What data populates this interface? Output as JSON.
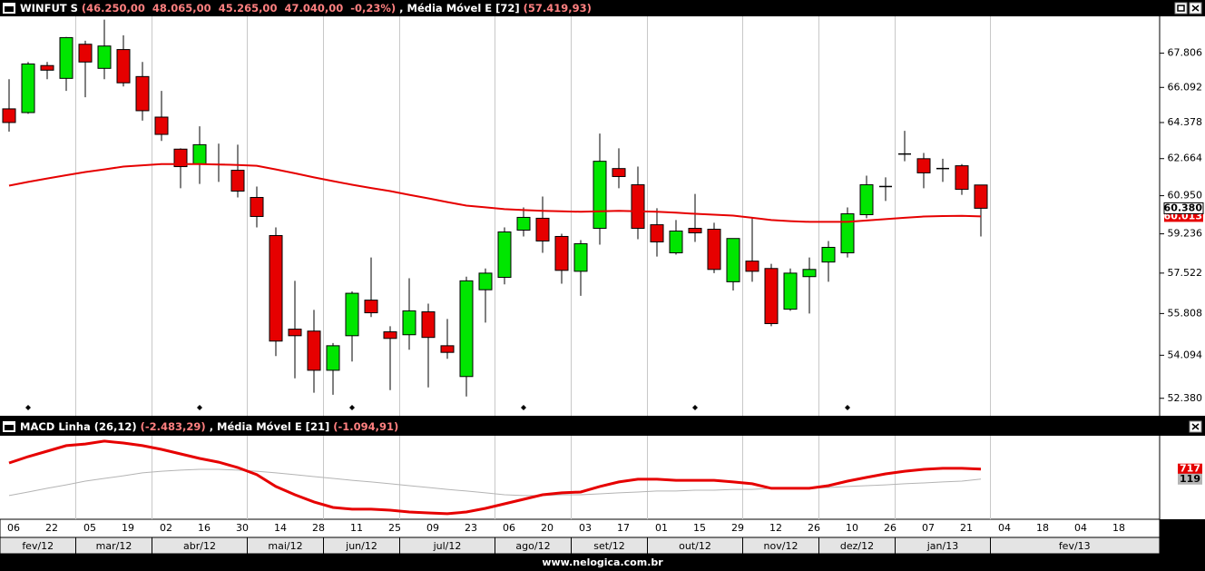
{
  "chart_data": [
    {
      "type": "candlestick",
      "header": [
        {
          "text": "WINFUT S",
          "color": "#ffffff"
        },
        {
          "text": "(46.250,00  48.065,00  45.265,00  47.040,00  -0,23%)",
          "color": "#ff8080"
        },
        {
          "text": ", Média Móvel E [72]",
          "color": "#ffffff"
        },
        {
          "text": "(57.419,93)",
          "color": "#ff8080"
        }
      ],
      "log_scale": true,
      "ylim": [
        51700,
        69700
      ],
      "yticks": [
        {
          "value": 52380,
          "label": "52.380"
        },
        {
          "value": 54094,
          "label": "54.094"
        },
        {
          "value": 55808,
          "label": "55.808"
        },
        {
          "value": 57522,
          "label": "57.522"
        },
        {
          "value": 59236,
          "label": "59.236"
        },
        {
          "value": 60950,
          "label": "60.950"
        },
        {
          "value": 62664,
          "label": "62.664"
        },
        {
          "value": 64378,
          "label": "64.378"
        },
        {
          "value": 66092,
          "label": "66.092"
        },
        {
          "value": 67806,
          "label": "67.806"
        }
      ],
      "categories": [
        "06",
        null,
        "22",
        null,
        "05",
        null,
        "19",
        null,
        "02",
        null,
        "16",
        null,
        "30",
        null,
        "14",
        null,
        "28",
        null,
        "11",
        null,
        "25",
        null,
        "09",
        null,
        "23",
        null,
        "06",
        null,
        "20",
        null,
        "03",
        null,
        "17",
        null,
        "01",
        null,
        "15",
        null,
        "29",
        null,
        "12",
        null,
        "26",
        null,
        "10",
        null,
        "26",
        null,
        "07",
        null,
        "21",
        null,
        "04",
        null,
        "18",
        null,
        "04",
        null,
        "18"
      ],
      "months": [
        "fev/12",
        "mar/12",
        "abr/12",
        "mai/12",
        "jun/12",
        "jul/12",
        "ago/12",
        "set/12",
        "out/12",
        "nov/12",
        "dez/12",
        "jan/13",
        "fev/13"
      ],
      "up_color": "#00e600",
      "down_color": "#e60000",
      "open": [
        65040,
        64860,
        67180,
        66540,
        68260,
        67040,
        67990,
        66630,
        64640,
        63110,
        62410,
        62390,
        62120,
        60870,
        59160,
        55160,
        55080,
        53490,
        54890,
        56370,
        55050,
        54930,
        55880,
        54480,
        53240,
        56810,
        57340,
        59400,
        59930,
        59120,
        57600,
        59480,
        62200,
        61450,
        59640,
        58400,
        59480,
        59440,
        57150,
        58040,
        57720,
        55990,
        57370,
        58000,
        58400,
        60090,
        61370,
        62880,
        62660,
        62200,
        62330,
        61440,
        null,
        null,
        null,
        null,
        null,
        null,
        null
      ],
      "high": [
        66500,
        67360,
        67360,
        68630,
        68440,
        69530,
        68720,
        67360,
        65920,
        63150,
        64200,
        63370,
        63320,
        61370,
        59520,
        57190,
        55960,
        54590,
        56740,
        58200,
        55280,
        57300,
        56220,
        55580,
        57370,
        57720,
        59520,
        60420,
        60910,
        59240,
        58960,
        63850,
        63150,
        62290,
        60380,
        59850,
        61030,
        59730,
        59040,
        59930,
        57920,
        57720,
        58200,
        58920,
        60420,
        61870,
        61790,
        63980,
        62930,
        62660,
        62410,
        61450,
        null,
        null,
        null,
        null,
        null,
        null,
        null
      ],
      "low": [
        63940,
        64800,
        66500,
        65920,
        65610,
        66500,
        66140,
        64470,
        63500,
        61290,
        61490,
        61580,
        60870,
        59520,
        54060,
        53170,
        52600,
        52520,
        53840,
        55660,
        52700,
        54320,
        52810,
        53950,
        52450,
        55430,
        57040,
        59120,
        58400,
        57070,
        56550,
        58760,
        61290,
        59000,
        58240,
        58320,
        58880,
        57520,
        56780,
        57150,
        55280,
        55920,
        55810,
        57150,
        58200,
        59930,
        60710,
        62540,
        61290,
        61580,
        60990,
        59120,
        null,
        null,
        null,
        null,
        null,
        null,
        null
      ],
      "close": [
        64380,
        67260,
        66950,
        68600,
        67360,
        68170,
        66320,
        64950,
        63810,
        62290,
        63320,
        62390,
        61160,
        60010,
        54670,
        54890,
        53490,
        54480,
        56660,
        55840,
        54780,
        55920,
        54820,
        54210,
        57190,
        57520,
        59320,
        59970,
        58920,
        57640,
        58800,
        62540,
        61830,
        59480,
        58880,
        59360,
        59280,
        57680,
        59030,
        57600,
        55390,
        57520,
        57680,
        58640,
        60130,
        61450,
        61370,
        62880,
        62000,
        62200,
        61240,
        60380,
        null,
        null,
        null,
        null,
        null,
        null,
        null
      ],
      "last_value_label": "60.380",
      "overlay": {
        "color": "#e60000",
        "values": [
          61410,
          61580,
          61740,
          61890,
          62040,
          62160,
          62290,
          62350,
          62410,
          62410,
          62410,
          62390,
          62370,
          62330,
          62160,
          61980,
          61790,
          61620,
          61450,
          61300,
          61160,
          60990,
          60830,
          60660,
          60500,
          60420,
          60340,
          60300,
          60260,
          60240,
          60220,
          60240,
          60260,
          60240,
          60220,
          60180,
          60130,
          60090,
          60050,
          59950,
          59850,
          59800,
          59770,
          59770,
          59770,
          59830,
          59890,
          59950,
          60010,
          60030,
          60040,
          60013,
          null,
          null,
          null,
          null,
          null,
          null,
          null
        ],
        "last_value_label": "60.013"
      }
    },
    {
      "type": "line",
      "header": [
        {
          "text": "MACD Linha (26,12)",
          "color": "#ffffff"
        },
        {
          "text": "(-2.483,29)",
          "color": "#ff8080"
        },
        {
          "text": ", Média Móvel E [21]",
          "color": "#ffffff"
        },
        {
          "text": "(-1.094,91)",
          "color": "#ff8080"
        }
      ],
      "ylim": [
        -2270,
        2700
      ],
      "series": [
        {
          "color": "#e60000",
          "line_width": 3,
          "label_text_color": "#ffffff",
          "values": [
            1080,
            1460,
            1780,
            2110,
            2210,
            2380,
            2270,
            2110,
            1890,
            1620,
            1350,
            1130,
            810,
            380,
            -320,
            -810,
            -1240,
            -1570,
            -1670,
            -1670,
            -1730,
            -1840,
            -1890,
            -1940,
            -1840,
            -1620,
            -1350,
            -1080,
            -810,
            -700,
            -650,
            -320,
            -50,
            110,
            110,
            50,
            50,
            50,
            -50,
            -160,
            -430,
            -430,
            -430,
            -270,
            0,
            220,
            430,
            590,
            700,
            760,
            760,
            717,
            null,
            null,
            null,
            null,
            null,
            null,
            null
          ]
        },
        {
          "color": "#b4b4b4",
          "line_width": 1,
          "label_text_color": "#000000",
          "values": [
            -860,
            -650,
            -430,
            -220,
            0,
            160,
            320,
            490,
            590,
            650,
            700,
            700,
            650,
            590,
            490,
            380,
            270,
            160,
            50,
            -50,
            -160,
            -270,
            -380,
            -490,
            -590,
            -700,
            -810,
            -860,
            -860,
            -810,
            -810,
            -760,
            -700,
            -650,
            -590,
            -590,
            -540,
            -540,
            -490,
            -490,
            -430,
            -430,
            -430,
            -380,
            -320,
            -270,
            -220,
            -160,
            -110,
            -50,
            0,
            119,
            null,
            null,
            null,
            null,
            null,
            null,
            null
          ]
        }
      ]
    }
  ],
  "footer": "www.nelogica.com.br"
}
